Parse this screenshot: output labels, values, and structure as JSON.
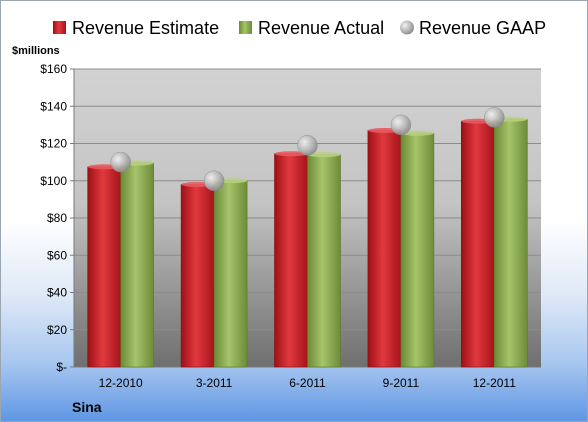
{
  "company": "Sina",
  "unit_label": "$millions",
  "colors": {
    "estimate": "#d01f26",
    "actual": "#8fae55",
    "gaap": "#a8a8a8"
  },
  "chart_data": {
    "type": "bar",
    "title": "",
    "xlabel": "",
    "ylabel": "$millions",
    "ylim": [
      0,
      160
    ],
    "y_ticks": [
      {
        "value": 0,
        "label": "$-"
      },
      {
        "value": 20,
        "label": "$20"
      },
      {
        "value": 40,
        "label": "$40"
      },
      {
        "value": 60,
        "label": "$60"
      },
      {
        "value": 80,
        "label": "$80"
      },
      {
        "value": 100,
        "label": "$100"
      },
      {
        "value": 120,
        "label": "$120"
      },
      {
        "value": 140,
        "label": "$140"
      },
      {
        "value": 160,
        "label": "$160"
      }
    ],
    "grid": true,
    "legend_position": "top",
    "categories": [
      "12-2010",
      "3-2011",
      "6-2011",
      "9-2011",
      "12-2011"
    ],
    "series": [
      {
        "name": "Revenue Estimate",
        "kind": "bar",
        "values": [
          107.5,
          98,
          114.5,
          127,
          132
        ]
      },
      {
        "name": "Revenue Actual",
        "kind": "bar",
        "values": [
          109.5,
          100,
          114,
          125.5,
          133
        ]
      },
      {
        "name": "Revenue GAAP",
        "kind": "marker",
        "values": [
          110,
          100,
          119,
          130,
          134
        ]
      }
    ]
  }
}
